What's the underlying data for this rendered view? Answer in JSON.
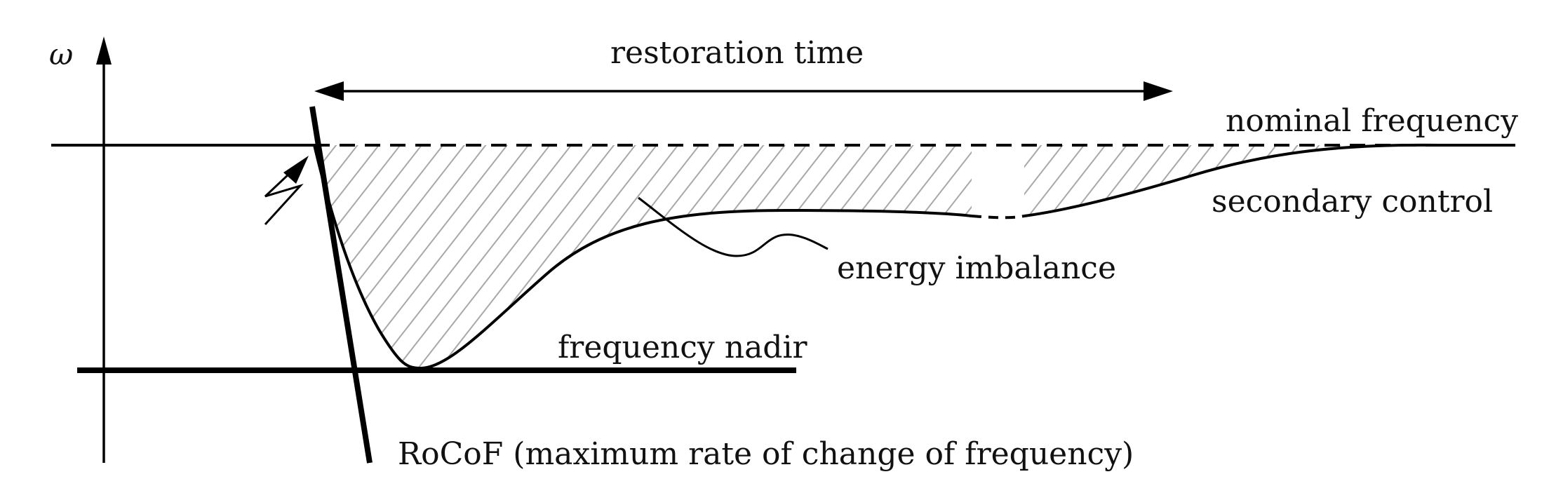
{
  "diagram": {
    "axis_label": "ω",
    "labels": {
      "restoration_time": "restoration time",
      "nominal_frequency": "nominal frequency",
      "secondary_control": "secondary control",
      "energy_imbalance": "energy imbalance",
      "frequency_nadir": "frequency nadir",
      "rocof": "RoCoF (maximum rate of change of frequency)"
    },
    "colors": {
      "line": "#000000",
      "hatch": "#a8a8a8"
    }
  }
}
